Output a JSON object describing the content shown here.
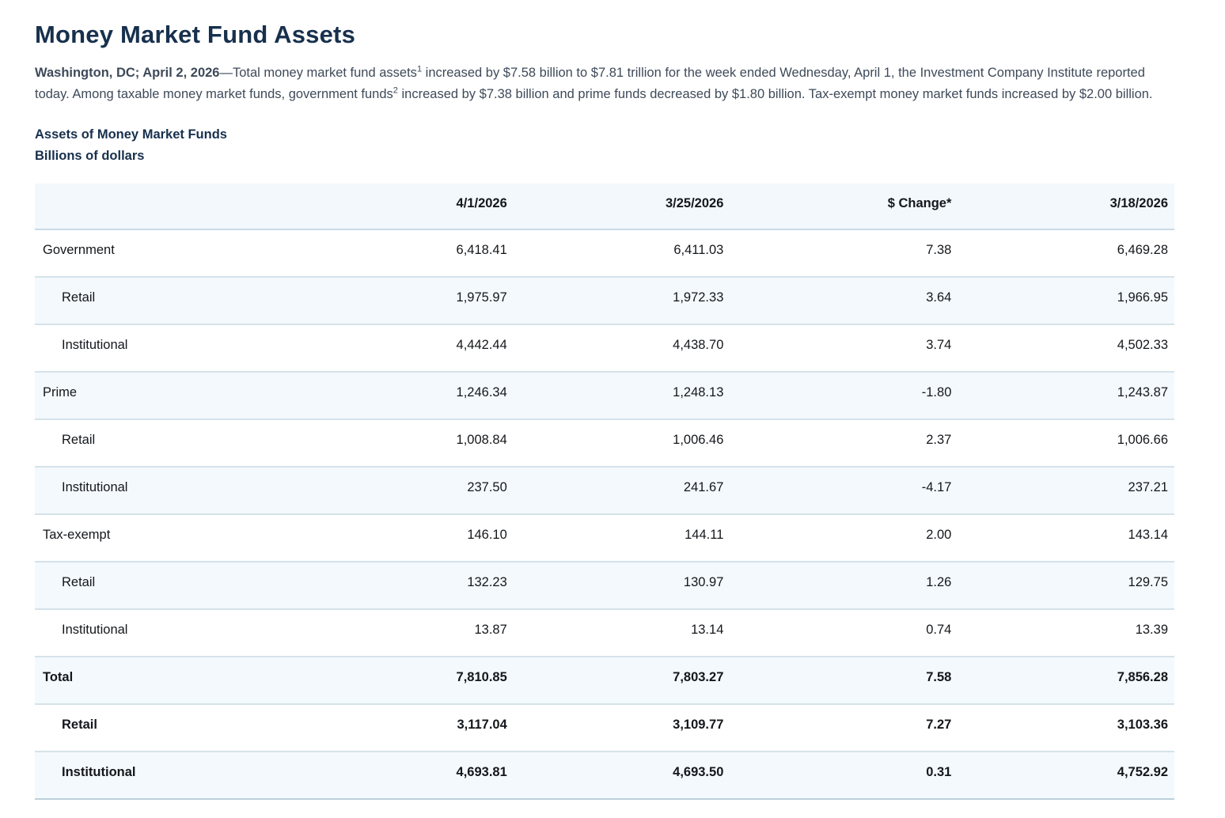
{
  "page": {
    "title": "Money Market Fund Assets",
    "intro": {
      "dateline": "Washington, DC; April 2, 2026",
      "body_1": "—Total money market fund assets",
      "sup_1": "1",
      "body_2": " increased by $7.58 billion to $7.81 trillion for the week ended Wednesday, April 1, the Investment Company Institute reported today. Among taxable money market funds, government funds",
      "sup_2": "2",
      "body_3": " increased by $7.38 billion and prime funds decreased by $1.80 billion. Tax-exempt money market funds increased by $2.00 billion."
    },
    "table_title": "Assets of Money Market Funds",
    "table_subtitle": "Billions of dollars"
  },
  "table": {
    "columns": [
      "",
      "4/1/2026",
      "3/25/2026",
      "$ Change*",
      "3/18/2026"
    ],
    "rows": [
      {
        "label": "Government",
        "indent": false,
        "bold": false,
        "values": [
          "6,418.41",
          "6,411.03",
          "7.38",
          "6,469.28"
        ]
      },
      {
        "label": "Retail",
        "indent": true,
        "bold": false,
        "values": [
          "1,975.97",
          "1,972.33",
          "3.64",
          "1,966.95"
        ]
      },
      {
        "label": "Institutional",
        "indent": true,
        "bold": false,
        "values": [
          "4,442.44",
          "4,438.70",
          "3.74",
          "4,502.33"
        ]
      },
      {
        "label": "Prime",
        "indent": false,
        "bold": false,
        "values": [
          "1,246.34",
          "1,248.13",
          "-1.80",
          "1,243.87"
        ]
      },
      {
        "label": "Retail",
        "indent": true,
        "bold": false,
        "values": [
          "1,008.84",
          "1,006.46",
          "2.37",
          "1,006.66"
        ]
      },
      {
        "label": "Institutional",
        "indent": true,
        "bold": false,
        "values": [
          "237.50",
          "241.67",
          "-4.17",
          "237.21"
        ]
      },
      {
        "label": "Tax-exempt",
        "indent": false,
        "bold": false,
        "values": [
          "146.10",
          "144.11",
          "2.00",
          "143.14"
        ]
      },
      {
        "label": "Retail",
        "indent": true,
        "bold": false,
        "values": [
          "132.23",
          "130.97",
          "1.26",
          "129.75"
        ]
      },
      {
        "label": "Institutional",
        "indent": true,
        "bold": false,
        "values": [
          "13.87",
          "13.14",
          "0.74",
          "13.39"
        ]
      },
      {
        "label": "Total",
        "indent": false,
        "bold": true,
        "values": [
          "7,810.85",
          "7,803.27",
          "7.58",
          "7,856.28"
        ]
      },
      {
        "label": "Retail",
        "indent": true,
        "bold": true,
        "values": [
          "3,117.04",
          "3,109.77",
          "7.27",
          "3,103.36"
        ]
      },
      {
        "label": "Institutional",
        "indent": true,
        "bold": true,
        "values": [
          "4,693.81",
          "4,693.50",
          "0.31",
          "4,752.92"
        ]
      }
    ]
  },
  "colors": {
    "title_navy": "#17304d",
    "body_text": "#3e4a59",
    "table_text": "#14171b",
    "header_bg": "#f2f8fc",
    "row_alt_bg": "#f4f9fd",
    "row_border": "#d5e2ea"
  }
}
